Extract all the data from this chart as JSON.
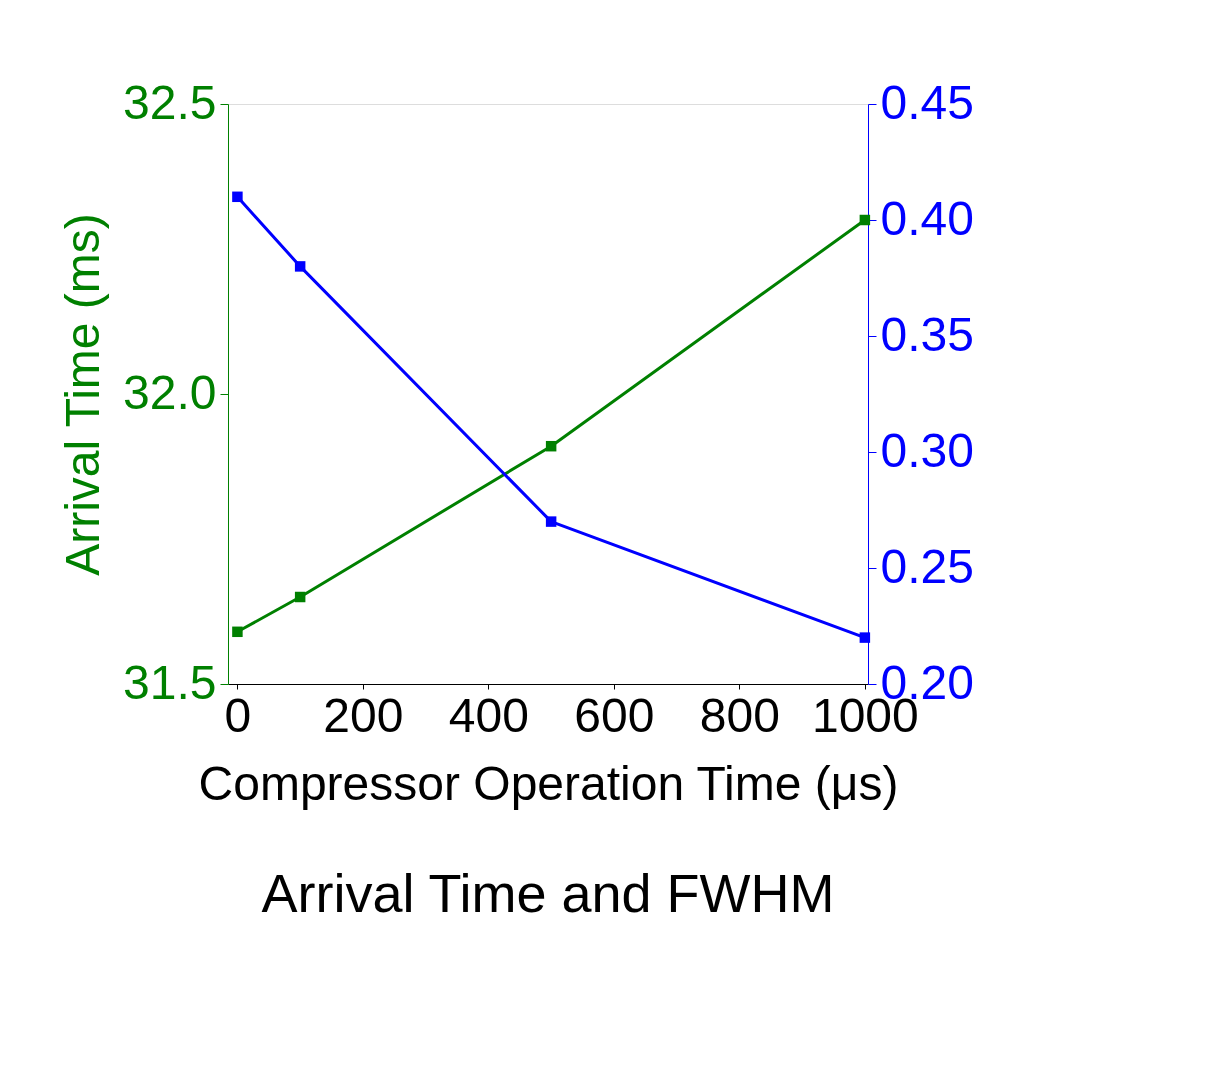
{
  "chart_data": {
    "type": "line",
    "title": "Arrival Time and FWHM",
    "xlabel": "Compressor Operation Time (μs)",
    "ylabel": "Arrival Time (ms)",
    "x": [
      0,
      100,
      500,
      1000
    ],
    "series": [
      {
        "color": "#008000",
        "values": [
          31.59,
          31.65,
          31.91,
          32.3
        ]
      },
      {
        "color": "#0000ff",
        "values": [
          0.41,
          0.38,
          0.27,
          0.22
        ],
        "axis": "y2"
      }
    ],
    "xlim": [
      -15,
      1005
    ],
    "xticks": [
      0,
      200,
      400,
      600,
      800,
      1000
    ],
    "ylim": [
      31.5,
      32.5
    ],
    "yticks": [
      {
        "value": 31.5,
        "label": "31.5"
      },
      {
        "value": 32.0,
        "label": "32.0"
      },
      {
        "value": 32.5,
        "label": "32.5"
      }
    ],
    "y2lim": [
      0.2,
      0.45
    ],
    "y2ticks": [
      {
        "value": 0.2,
        "label": "0.20"
      },
      {
        "value": 0.25,
        "label": "0.25"
      },
      {
        "value": 0.3,
        "label": "0.30"
      },
      {
        "value": 0.35,
        "label": "0.35"
      },
      {
        "value": 0.4,
        "label": "0.40"
      },
      {
        "value": 0.45,
        "label": "0.45"
      }
    ],
    "marker": "square",
    "line_style": "solid"
  }
}
